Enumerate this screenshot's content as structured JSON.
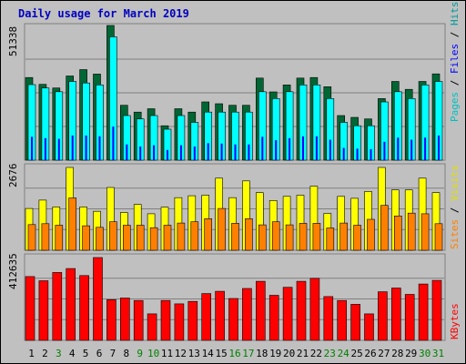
{
  "chart_data": {
    "type": "bar",
    "title": "Daily usage for March 2019",
    "days": [
      "1",
      "2",
      "3",
      "4",
      "5",
      "6",
      "7",
      "8",
      "9",
      "10",
      "11",
      "12",
      "13",
      "14",
      "15",
      "16",
      "17",
      "18",
      "19",
      "20",
      "21",
      "22",
      "23",
      "24",
      "25",
      "26",
      "27",
      "28",
      "29",
      "30",
      "31"
    ],
    "weekend_days": [
      "3",
      "9",
      "10",
      "16",
      "17",
      "23",
      "24",
      "30",
      "31"
    ],
    "panels": [
      {
        "id": "hits",
        "ymax_label": "51338",
        "ylim": [
          0,
          51338
        ],
        "series": [
          {
            "name": "Hits",
            "color": "#006633",
            "values": [
              31500,
              28900,
              27500,
              32100,
              34500,
              32800,
              51338,
              20900,
              18300,
              19600,
              13100,
              19600,
              18300,
              22200,
              21500,
              20900,
              20900,
              31300,
              26000,
              28700,
              31300,
              31500,
              28000,
              17000,
              16300,
              15700,
              23500,
              30000,
              27000,
              30000,
              32900
            ]
          },
          {
            "name": "Files",
            "color": "#00ffff",
            "values": [
              28800,
              27500,
              26100,
              30000,
              29400,
              28700,
              47000,
              17000,
              15700,
              17000,
              11800,
              17000,
              14400,
              18300,
              18300,
              18300,
              18300,
              26100,
              23500,
              26100,
              28700,
              28700,
              23500,
              14400,
              13100,
              13100,
              22200,
              26100,
              23500,
              28700,
              30000
            ]
          },
          {
            "name": "Pages",
            "color": "#0000ff",
            "values": [
              8900,
              8400,
              8100,
              9400,
              9400,
              9100,
              12800,
              6000,
              5200,
              5700,
              3900,
              5700,
              5200,
              6500,
              6300,
              6000,
              6000,
              8900,
              7600,
              8400,
              9100,
              9100,
              7800,
              4700,
              4400,
              4200,
              7000,
              8600,
              7800,
              8600,
              9400
            ]
          }
        ],
        "legend": [
          {
            "text": "Pages",
            "color": "#00c0c0"
          },
          {
            "text": " / ",
            "color": "#000000"
          },
          {
            "text": "Files",
            "color": "#0000ff"
          },
          {
            "text": " / ",
            "color": "#000000"
          },
          {
            "text": "Hits",
            "color": "#009999"
          }
        ]
      },
      {
        "id": "visits",
        "ymax_label": "2676",
        "ylim": [
          0,
          2676
        ],
        "series": [
          {
            "name": "Visits",
            "color": "#ffff00",
            "values": [
              1350,
              1620,
              1400,
              2676,
              1400,
              1260,
              2030,
              1220,
              1480,
              1180,
              1390,
              1700,
              1760,
              1780,
              2330,
              1700,
              2240,
              1860,
              1610,
              1740,
              1780,
              2070,
              1190,
              1740,
              1680,
              1900,
              2676,
              1950,
              1950,
              2330,
              1860
            ]
          },
          {
            "name": "Sites",
            "color": "#ff8000",
            "values": [
              830,
              860,
              810,
              1690,
              790,
              740,
              920,
              810,
              810,
              730,
              810,
              880,
              920,
              1020,
              1350,
              870,
              1020,
              820,
              920,
              820,
              870,
              870,
              720,
              880,
              810,
              1000,
              1450,
              1110,
              1200,
              1180,
              860
            ]
          }
        ],
        "legend": [
          {
            "text": "Sites",
            "color": "#ff8000"
          },
          {
            "text": " / ",
            "color": "#000000"
          },
          {
            "text": "Visits",
            "color": "#e0e000"
          }
        ]
      },
      {
        "id": "kbytes",
        "ymax_label": "412635",
        "ylim": [
          0,
          412635
        ],
        "series": [
          {
            "name": "KBytes",
            "color": "#ff0000",
            "values": [
              317700,
              297000,
              338300,
              357700,
              322900,
              412635,
              202800,
              211000,
              198600,
              132000,
              198600,
              181700,
              194100,
              232900,
              244400,
              208700,
              258300,
              294500,
              224600,
              264400,
              294500,
              308900,
              218300,
              198600,
              179700,
              132000,
              242200,
              260800,
              228800,
              280600,
              298600
            ]
          }
        ],
        "legend": [
          {
            "text": "KBytes",
            "color": "#ff0000"
          }
        ]
      }
    ]
  }
}
